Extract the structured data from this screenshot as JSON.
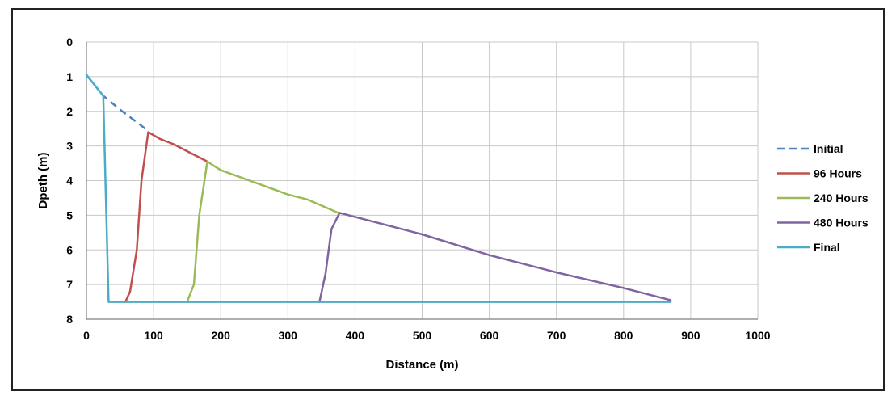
{
  "chart_data": {
    "type": "line",
    "title": "",
    "xlabel": "Distance (m)",
    "ylabel": "Dpeth (m)",
    "xlim": [
      0,
      1000
    ],
    "ylim": [
      0,
      8
    ],
    "y_inverted": true,
    "xticks": [
      "0",
      "100",
      "200",
      "300",
      "400",
      "500",
      "600",
      "700",
      "800",
      "900",
      "1000"
    ],
    "yticks": [
      "0",
      "1",
      "2",
      "3",
      "4",
      "5",
      "6",
      "7",
      "8"
    ],
    "grid": true,
    "legend_position": "right",
    "series": [
      {
        "name": "Initial",
        "color": "#4f81bd",
        "dash": true,
        "points": [
          [
            0,
            0.95
          ],
          [
            25,
            1.55
          ],
          [
            50,
            1.95
          ],
          [
            91,
            2.55
          ]
        ]
      },
      {
        "name": "96 Hours",
        "color": "#c0504d",
        "dash": false,
        "points": [
          [
            58,
            7.5
          ],
          [
            65,
            7.2
          ],
          [
            75,
            6.0
          ],
          [
            82,
            4.0
          ],
          [
            92,
            2.6
          ],
          [
            110,
            2.8
          ],
          [
            130,
            2.95
          ],
          [
            150,
            3.15
          ],
          [
            180,
            3.45
          ]
        ]
      },
      {
        "name": "240 Hours",
        "color": "#9bbb59",
        "dash": false,
        "points": [
          [
            150,
            7.5
          ],
          [
            160,
            7.0
          ],
          [
            168,
            5.0
          ],
          [
            180,
            3.45
          ],
          [
            200,
            3.7
          ],
          [
            250,
            4.05
          ],
          [
            300,
            4.4
          ],
          [
            330,
            4.55
          ],
          [
            375,
            4.93
          ]
        ]
      },
      {
        "name": "480 Hours",
        "color": "#8064a2",
        "dash": false,
        "points": [
          [
            347,
            7.5
          ],
          [
            356,
            6.7
          ],
          [
            365,
            5.4
          ],
          [
            377,
            4.93
          ],
          [
            450,
            5.3
          ],
          [
            500,
            5.55
          ],
          [
            600,
            6.15
          ],
          [
            700,
            6.65
          ],
          [
            800,
            7.1
          ],
          [
            870,
            7.45
          ]
        ]
      },
      {
        "name": "Final",
        "color": "#4bacc6",
        "dash": false,
        "points": [
          [
            0,
            0.95
          ],
          [
            25,
            1.55
          ],
          [
            33,
            7.5
          ],
          [
            870,
            7.5
          ]
        ]
      }
    ]
  }
}
